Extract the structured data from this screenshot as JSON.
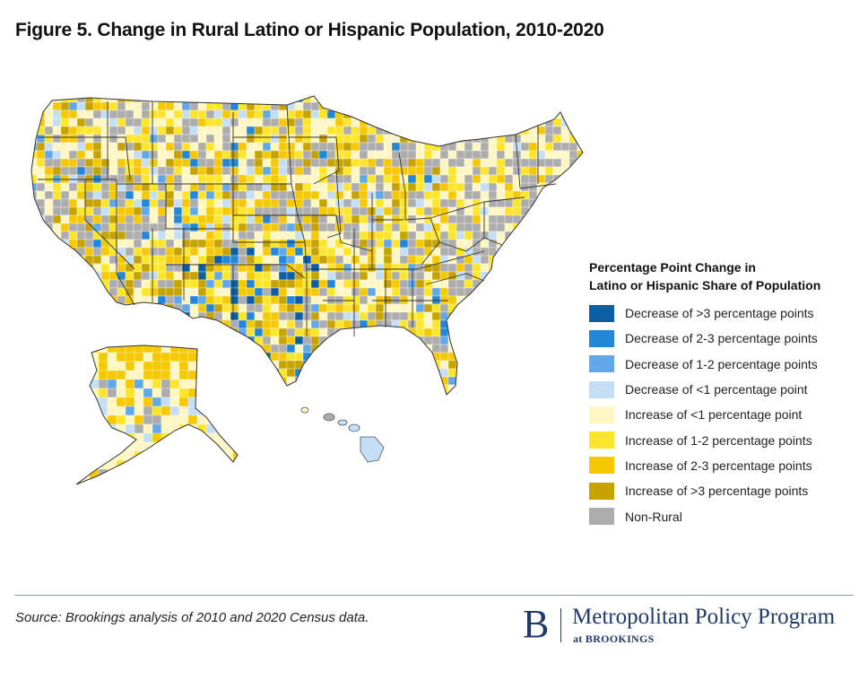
{
  "title": "Figure 5. Change in Rural Latino or Hispanic Population, 2010-2020",
  "legend": {
    "title_line1": "Percentage Point Change in",
    "title_line2": "Latino or Hispanic Share of Population",
    "items": [
      {
        "label": "Decrease of >3 percentage points",
        "color": "#0d5fa3"
      },
      {
        "label": "Decrease of 2-3 percentage points",
        "color": "#2486d6"
      },
      {
        "label": "Decrease of 1-2 percentage points",
        "color": "#62a8e8"
      },
      {
        "label": "Decrease of <1 percentage point",
        "color": "#c4dff5"
      },
      {
        "label": "Increase of <1 percentage point",
        "color": "#fff6c4"
      },
      {
        "label": "Increase of 1-2 percentage points",
        "color": "#fde52a"
      },
      {
        "label": "Increase of 2-3 percentage points",
        "color": "#f6c800"
      },
      {
        "label": "Increase of >3 percentage points",
        "color": "#c7a300"
      },
      {
        "label": "Non-Rural",
        "color": "#adadad"
      }
    ]
  },
  "source": "Source: Brookings analysis of 2010 and 2020 Census data.",
  "brand": {
    "letter": "B",
    "name": "Metropolitan Policy Program",
    "sub": "at BROOKINGS"
  }
}
